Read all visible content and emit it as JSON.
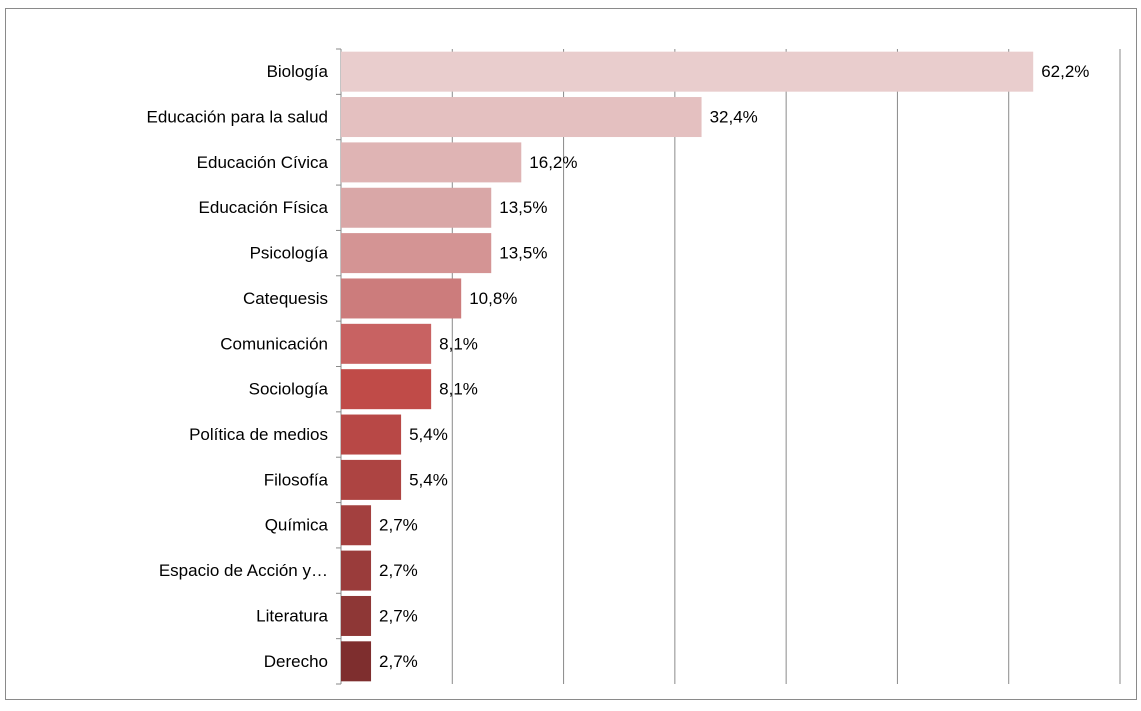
{
  "chart_data": {
    "type": "bar",
    "orientation": "horizontal",
    "categories": [
      "Biología",
      "Educación para la salud",
      "Educación Cívica",
      "Educación Física",
      "Psicología",
      "Catequesis",
      "Comunicación",
      "Sociología",
      "Política de medios",
      "Filosofía",
      "Química",
      "Espacio de Acción y…",
      "Literatura",
      "Derecho"
    ],
    "values": [
      62.2,
      32.4,
      16.2,
      13.5,
      13.5,
      10.8,
      8.1,
      8.1,
      5.4,
      5.4,
      2.7,
      2.7,
      2.7,
      2.7
    ],
    "value_labels": [
      "62,2%",
      "32,4%",
      "16,2%",
      "13,5%",
      "13,5%",
      "10,8%",
      "8,1%",
      "8,1%",
      "5,4%",
      "5,4%",
      "2,7%",
      "2,7%",
      "2,7%",
      "2,7%"
    ],
    "colors": [
      "#e9cdcd",
      "#e4c0c0",
      "#dfb4b4",
      "#d9a7a7",
      "#d49494",
      "#cc7c7c",
      "#c86262",
      "#c04b48",
      "#b84846",
      "#ad4442",
      "#a3403f",
      "#9a3c3b",
      "#8e3736",
      "#7e2e2e"
    ],
    "xlim": [
      0,
      70
    ],
    "xticks": [
      0,
      10,
      20,
      30,
      40,
      50,
      60,
      70
    ],
    "grid": true
  }
}
